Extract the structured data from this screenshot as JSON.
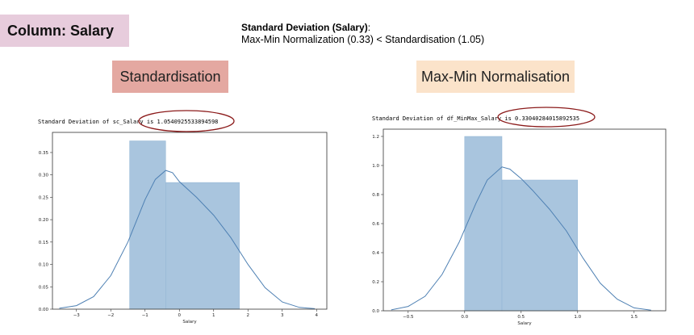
{
  "column_tag": "Column: Salary",
  "summary": {
    "heading": "Standard Deviation (Salary)",
    "colon": ":",
    "text": "Max-Min Normalization (0.33) < Standardisation (1.05)"
  },
  "labels": {
    "standardisation": "Standardisation",
    "minmax": "Max-Min Normalisation"
  },
  "outputs": {
    "standardisation_prefix": "Standard Deviation of sc_Salary is ",
    "standardisation_value": "1.0540925533894598",
    "minmax_prefix": "Standard Deviation of df_MinMax_Salary is ",
    "minmax_value": "0.33040284015892535"
  },
  "colors": {
    "bar": "#a9c5de",
    "bar_edge": "#8fb3d3",
    "kde": "#4e80b3",
    "highlight": "#8b1a1a"
  },
  "chart_data": [
    {
      "type": "bar",
      "xlabel": "Salary",
      "ylabel": "",
      "xlim": [
        -3.7,
        4.3
      ],
      "ylim": [
        0,
        0.395
      ],
      "xticks": [
        -3,
        -2,
        -1,
        0,
        1,
        2,
        3,
        4
      ],
      "yticks": [
        "0.00",
        "0.05",
        "0.10",
        "0.15",
        "0.20",
        "0.25",
        "0.30",
        "0.35"
      ],
      "bins": [
        {
          "x0": -1.45,
          "x1": -0.4,
          "value": 0.376
        },
        {
          "x0": -0.4,
          "x1": 1.75,
          "value": 0.283
        }
      ],
      "kde": {
        "x": [
          -3.5,
          -3.0,
          -2.5,
          -2.0,
          -1.5,
          -1.0,
          -0.7,
          -0.4,
          -0.2,
          0.0,
          0.5,
          1.0,
          1.5,
          2.0,
          2.5,
          3.0,
          3.5,
          3.95
        ],
        "y": [
          0.002,
          0.008,
          0.028,
          0.075,
          0.15,
          0.245,
          0.29,
          0.31,
          0.305,
          0.285,
          0.25,
          0.21,
          0.16,
          0.1,
          0.048,
          0.016,
          0.004,
          0.001
        ]
      }
    },
    {
      "type": "bar",
      "xlabel": "Salary",
      "ylabel": "",
      "xlim": [
        -0.72,
        1.78
      ],
      "ylim": [
        0,
        1.25
      ],
      "xticks": [
        "−0.5",
        "0.0",
        "0.5",
        "1.0",
        "1.5"
      ],
      "xtick_values": [
        -0.5,
        0.0,
        0.5,
        1.0,
        1.5
      ],
      "yticks": [
        "0.0",
        "0.2",
        "0.4",
        "0.6",
        "0.8",
        "1.0",
        "1.2"
      ],
      "bins": [
        {
          "x0": 0.0,
          "x1": 0.33,
          "value": 1.2
        },
        {
          "x0": 0.33,
          "x1": 1.0,
          "value": 0.9
        }
      ],
      "kde": {
        "x": [
          -0.65,
          -0.5,
          -0.35,
          -0.2,
          -0.05,
          0.1,
          0.2,
          0.33,
          0.4,
          0.5,
          0.6,
          0.75,
          0.9,
          1.05,
          1.2,
          1.35,
          1.5,
          1.65
        ],
        "y": [
          0.006,
          0.03,
          0.1,
          0.25,
          0.47,
          0.74,
          0.9,
          0.99,
          0.975,
          0.91,
          0.83,
          0.7,
          0.55,
          0.36,
          0.19,
          0.08,
          0.02,
          0.004
        ]
      }
    }
  ]
}
